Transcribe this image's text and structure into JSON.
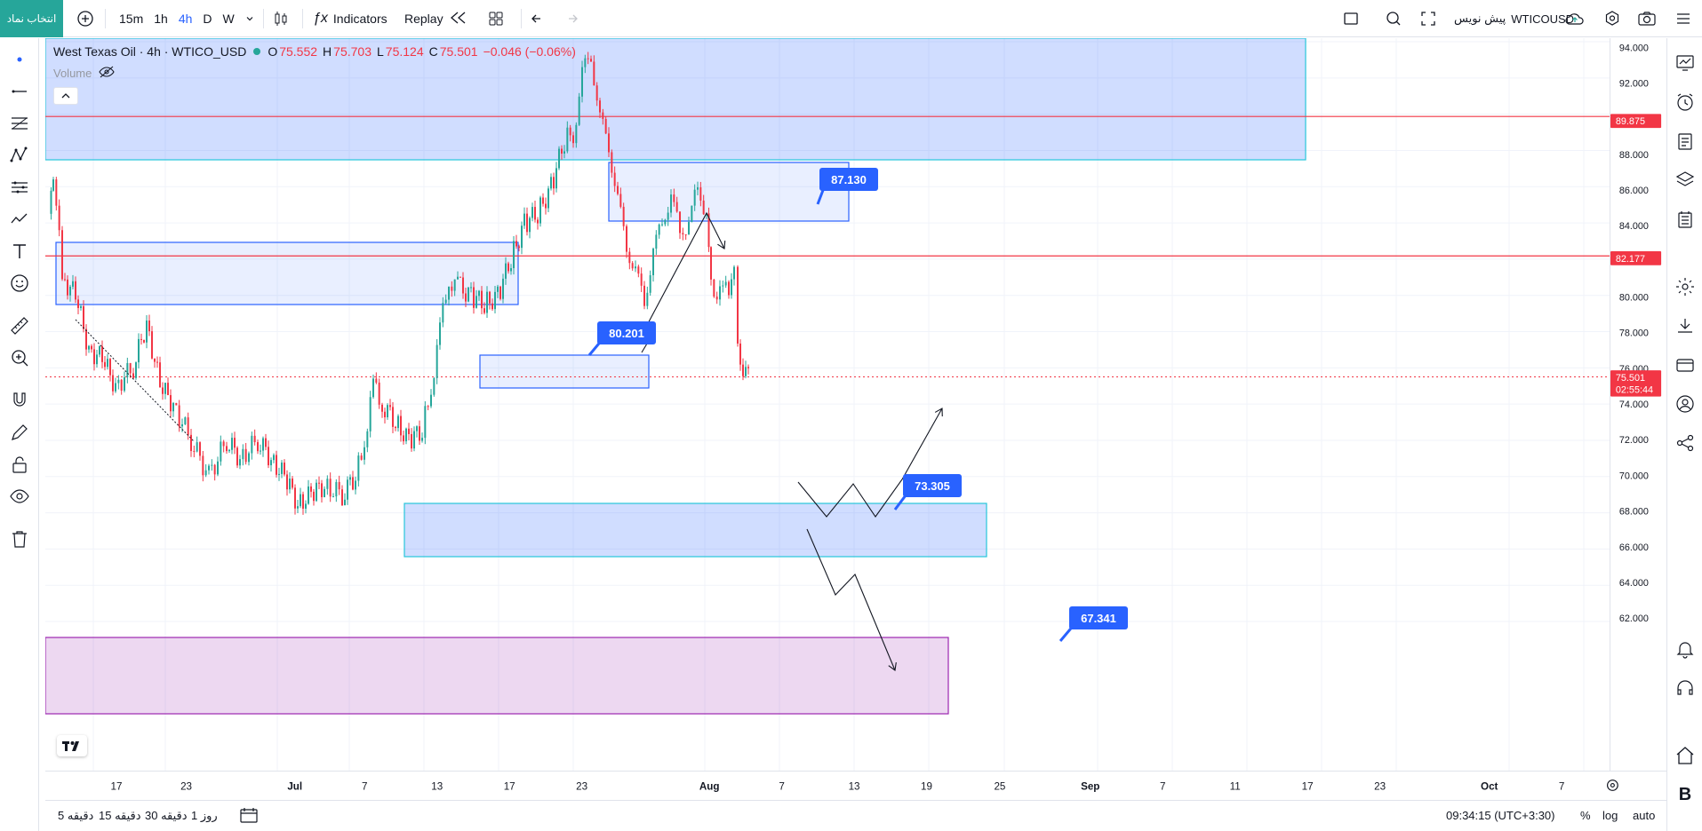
{
  "toolbar": {
    "symbol_button": "انتخاب نماد",
    "timeframes": [
      "15m",
      "1h",
      "4h",
      "D",
      "W"
    ],
    "active_timeframe": "4h",
    "indicators_label": "Indicators",
    "replay_label": "Replay",
    "symbol_name": "WTICOUSD",
    "pre_text": "پیش نویس"
  },
  "legend": {
    "title": "West Texas Oil · 4h · WTICO_USD",
    "open_label": "O",
    "open": "75.552",
    "high_label": "H",
    "high": "75.703",
    "low_label": "L",
    "low": "75.124",
    "close_label": "C",
    "close": "75.501",
    "change": "−0.046 (−0.06%)",
    "volume_label": "Volume"
  },
  "price_axis": {
    "ticks": [
      "94.000",
      "92.000",
      "88.000",
      "86.000",
      "84.000",
      "80.000",
      "78.000",
      "76.000",
      "74.000",
      "72.000",
      "70.000",
      "68.000",
      "66.000",
      "64.000",
      "62.000"
    ],
    "tags": [
      {
        "text": "89.875",
        "color": "#f23645"
      },
      {
        "text": "82.177",
        "color": "#f23645"
      },
      {
        "text": "75.501",
        "sub": "02:55:44",
        "color": "#f23645"
      }
    ]
  },
  "time_axis": {
    "labels": [
      "17",
      "23",
      "Jul",
      "7",
      "13",
      "17",
      "23",
      "Aug",
      "7",
      "13",
      "19",
      "25",
      "Sep",
      "7",
      "11",
      "17",
      "23",
      "Oct",
      "7"
    ]
  },
  "annotations": [
    "87.130",
    "80.201",
    "73.305",
    "67.341"
  ],
  "bottom": {
    "ranges": [
      "5 دقیقه",
      "15 دقیقه",
      "30 دقیقه",
      "1 روز"
    ],
    "clock": "09:34:15 (UTC+3:30)",
    "percent": "%",
    "log": "log",
    "auto": "auto"
  },
  "colors": {
    "up": "#26a69a",
    "down": "#f23645",
    "zone_blue": "#2962ff",
    "zone_purple": "#9c27b0",
    "accent": "#2962ff"
  }
}
